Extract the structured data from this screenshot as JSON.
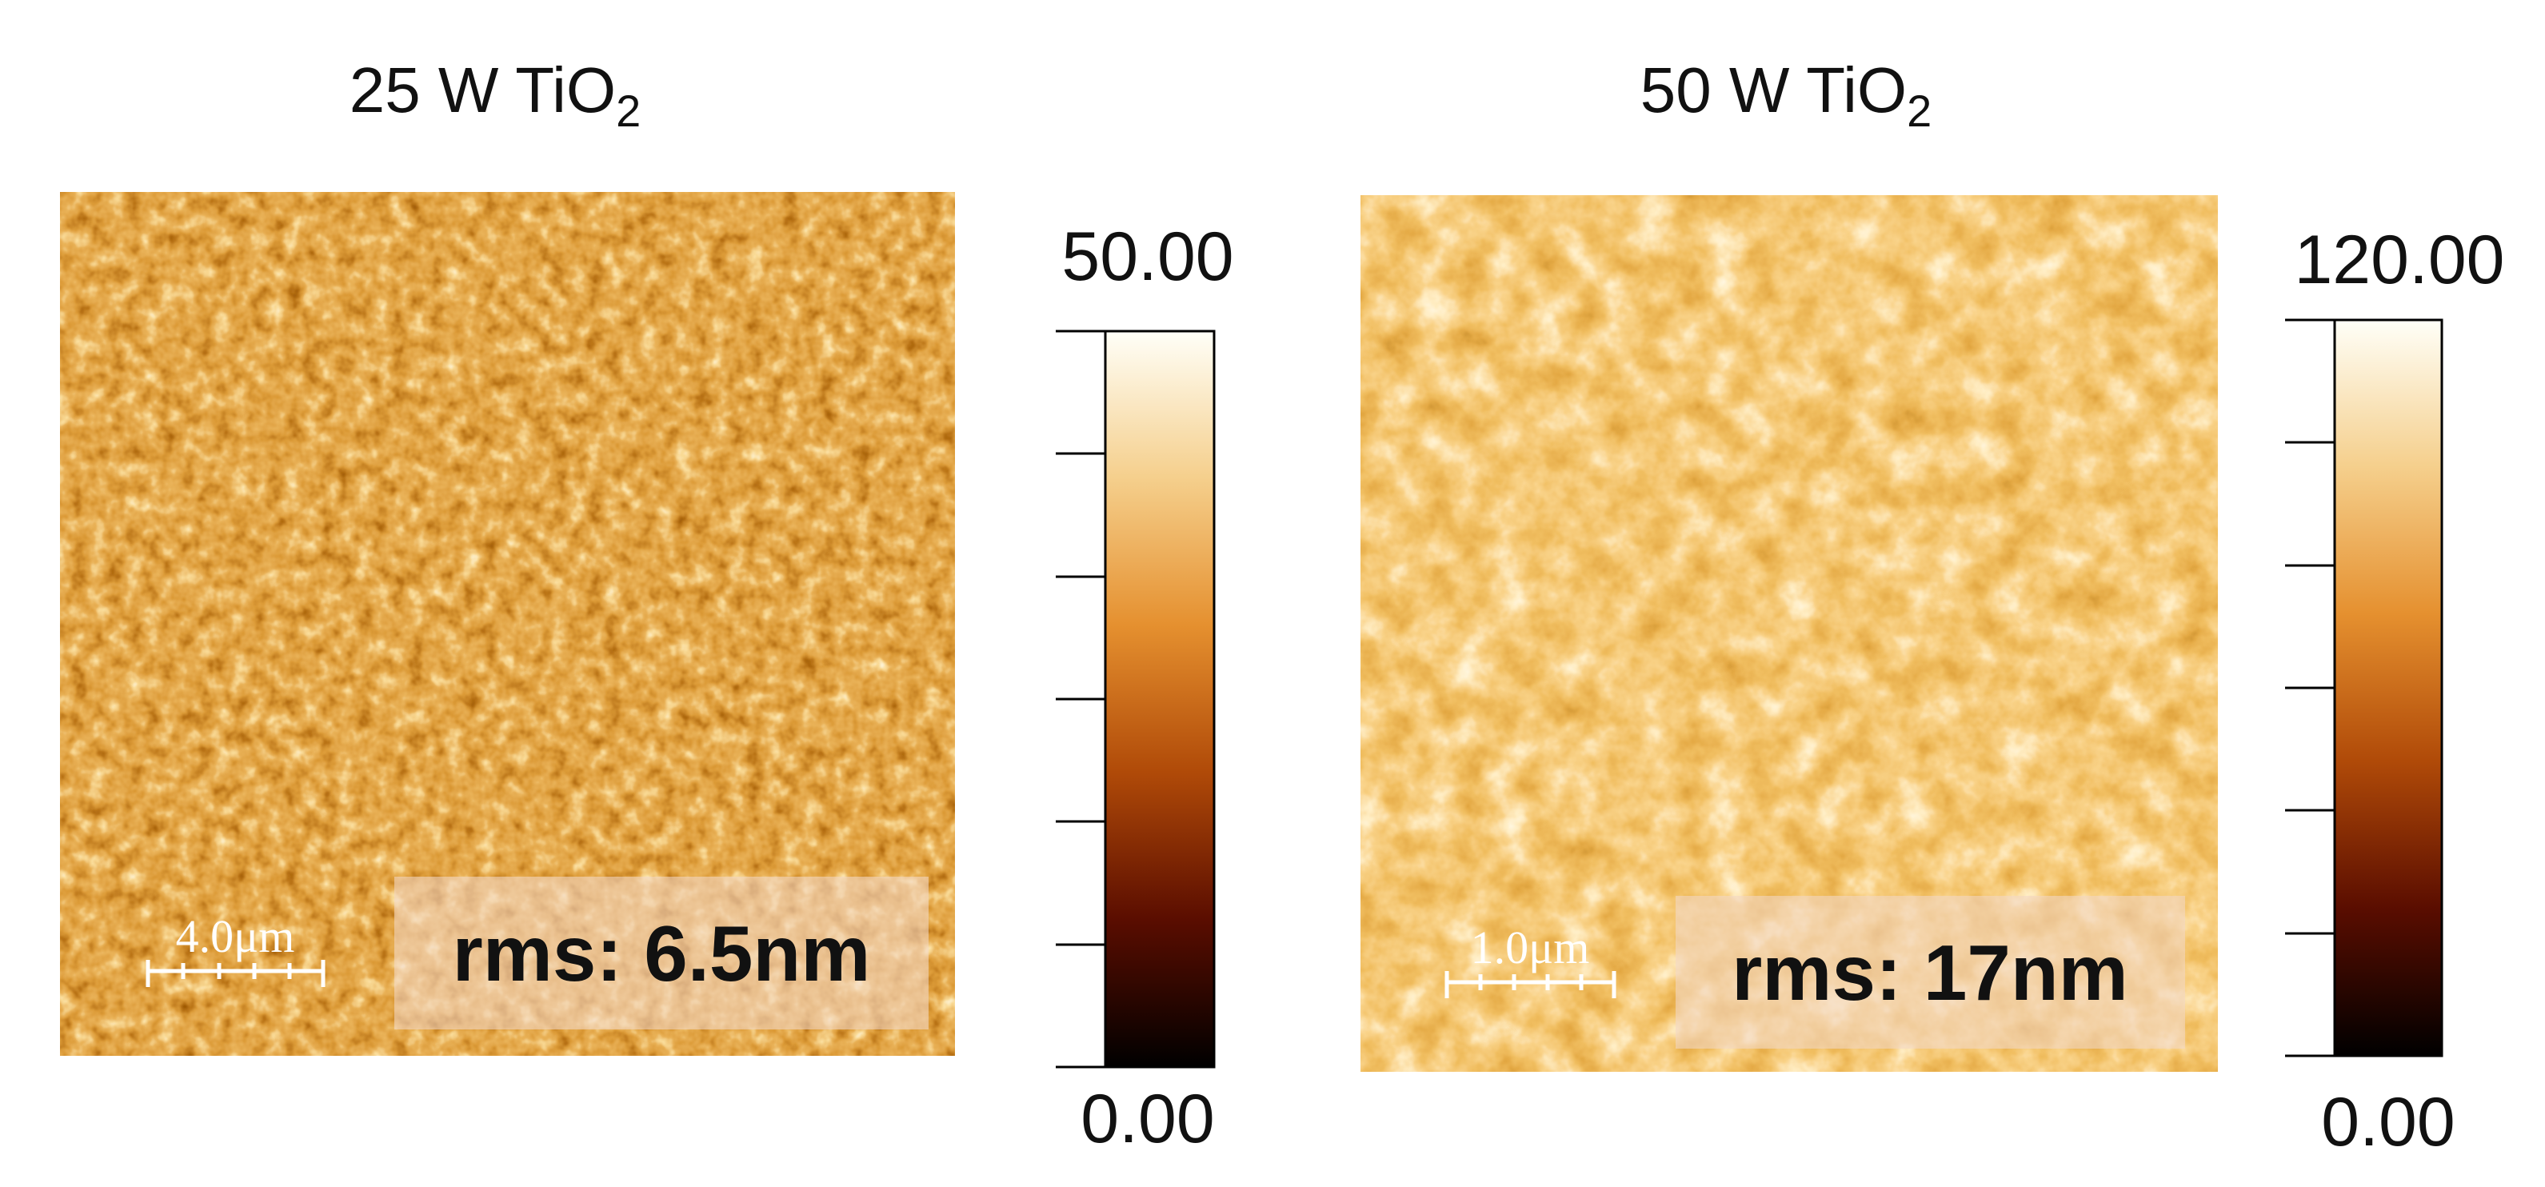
{
  "panels": [
    {
      "title": {
        "text": "25 W TiO",
        "subscript": "2"
      },
      "scale_bar": "4.0μm",
      "rms": "rms: 6.5nm",
      "colorbar": {
        "max": "50.00",
        "min": "0.00"
      }
    },
    {
      "title": {
        "text": "50 W TiO",
        "subscript": "2"
      },
      "scale_bar": "1.0μm",
      "rms": "rms: 17nm",
      "colorbar": {
        "max": "120.00",
        "min": "0.00"
      }
    }
  ]
}
